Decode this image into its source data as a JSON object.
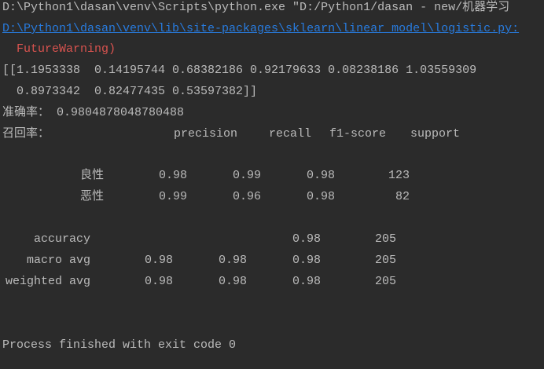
{
  "console": {
    "command": "D:\\Python1\\dasan\\venv\\Scripts\\python.exe \"D:/Python1/dasan - new/机器学习",
    "warning_link": "D:\\Python1\\dasan\\venv\\lib\\site-packages\\sklearn\\linear_model\\logistic.py:",
    "warning_text": "  FutureWarning)",
    "array_line1": "[[1.1953338  0.14195744 0.68382186 0.92179633 0.08238186 1.03559309",
    "array_line2": "  0.8973342  0.82477435 0.53597382]]",
    "accuracy_label": "准确率：",
    "accuracy_value": "0.9804878048780488",
    "recall_label": "召回率：",
    "exit_message": "Process finished with exit code 0",
    "colors": {
      "background": "#2b2b2b",
      "text": "#bbbbbb",
      "link": "#287bde",
      "error": "#d9534f"
    }
  },
  "report": {
    "headers": [
      "precision",
      "recall",
      "f1-score",
      "support"
    ],
    "class_rows": [
      {
        "label": "良性",
        "precision": "0.98",
        "recall": "0.99",
        "f1": "0.98",
        "support": "123"
      },
      {
        "label": "恶性",
        "precision": "0.99",
        "recall": "0.96",
        "f1": "0.98",
        "support": "82"
      }
    ],
    "accuracy_row": {
      "label": "accuracy",
      "f1": "0.98",
      "support": "205"
    },
    "avg_rows": [
      {
        "label": "macro avg",
        "precision": "0.98",
        "recall": "0.98",
        "f1": "0.98",
        "support": "205"
      },
      {
        "label": "weighted avg",
        "precision": "0.98",
        "recall": "0.98",
        "f1": "0.98",
        "support": "205"
      }
    ]
  }
}
